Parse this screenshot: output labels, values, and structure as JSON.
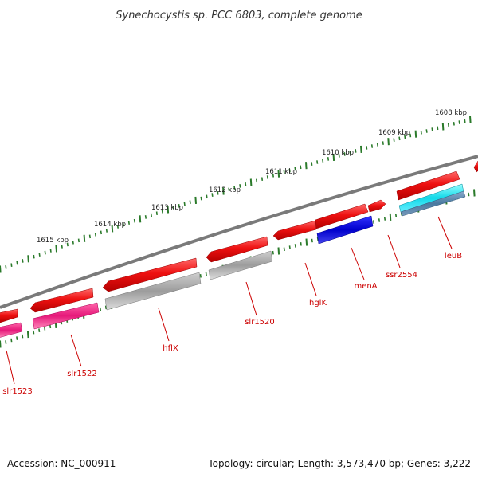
{
  "title": "Synechocystis sp. PCC 6803, complete genome",
  "footer": {
    "accession": "Accession: NC_000911",
    "summary": "Topology: circular; Length: 3,573,470 bp; Genes: 3,222"
  },
  "colors": {
    "backbone": "#7a7a7a",
    "tick": "#2a7a2a",
    "gene_label": "#cc0000",
    "strand_arrow": "#ee1111",
    "cds_pink": "#ee2277",
    "cds_grey": "#a8a8a8",
    "cds_blue": "#1111dd",
    "cds_cyan": "#22dddd",
    "cds_steel": "#5588aa"
  },
  "kbp_labels": [
    "1608 kbp",
    "1609 kbp",
    "1610 kbp",
    "1611 kbp",
    "1612 kbp",
    "1613 kbp",
    "1614 kbp",
    "1615 kbp"
  ],
  "genes": [
    {
      "name": "slr1523",
      "color": "cds_pink"
    },
    {
      "name": "slr1522",
      "color": "cds_pink"
    },
    {
      "name": "hflX",
      "color": "cds_grey"
    },
    {
      "name": "slr1520",
      "color": "cds_grey"
    },
    {
      "name": "hglK",
      "color": "cds_blue"
    },
    {
      "name": "menA",
      "color": "cds_blue"
    },
    {
      "name": "ssr2554",
      "color": "strand_arrow"
    },
    {
      "name": "leuB",
      "color": "cds_cyan"
    }
  ]
}
